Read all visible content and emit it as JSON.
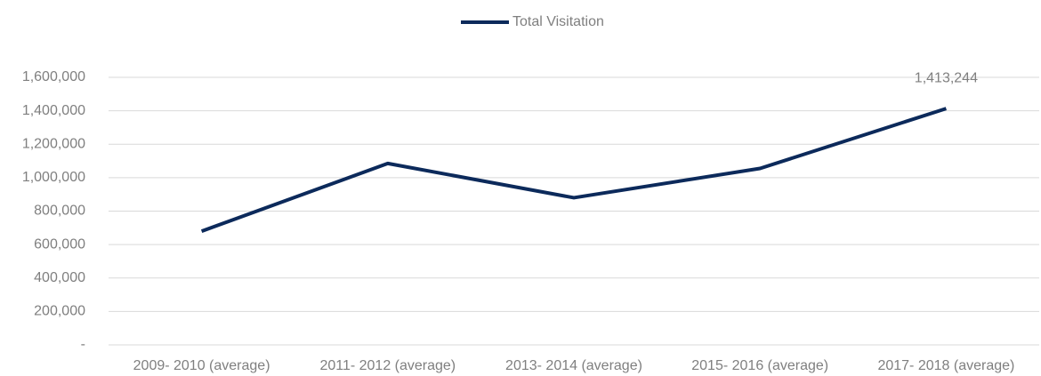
{
  "chart_data": {
    "type": "line",
    "categories": [
      "2009- 2010 (average)",
      "2011- 2012 (average)",
      "2013- 2014 (average)",
      "2015- 2016 (average)",
      "2017- 2018 (average)"
    ],
    "series": [
      {
        "name": "Total Visitation",
        "color": "#0c2a5b",
        "values": [
          680000,
          1085000,
          880000,
          1055000,
          1413244
        ],
        "value_labels": [
          null,
          null,
          null,
          null,
          "1,413,244"
        ]
      }
    ],
    "ylim": [
      0,
      1600000
    ],
    "yticks": [
      {
        "value": 0,
        "label": "-"
      },
      {
        "value": 200000,
        "label": "200,000"
      },
      {
        "value": 400000,
        "label": "400,000"
      },
      {
        "value": 600000,
        "label": "600,000"
      },
      {
        "value": 800000,
        "label": "800,000"
      },
      {
        "value": 1000000,
        "label": "1,000,000"
      },
      {
        "value": 1200000,
        "label": "1,200,000"
      },
      {
        "value": 1400000,
        "label": "1,400,000"
      },
      {
        "value": 1600000,
        "label": "1,600,000"
      }
    ],
    "grid": true,
    "legend": "top"
  }
}
